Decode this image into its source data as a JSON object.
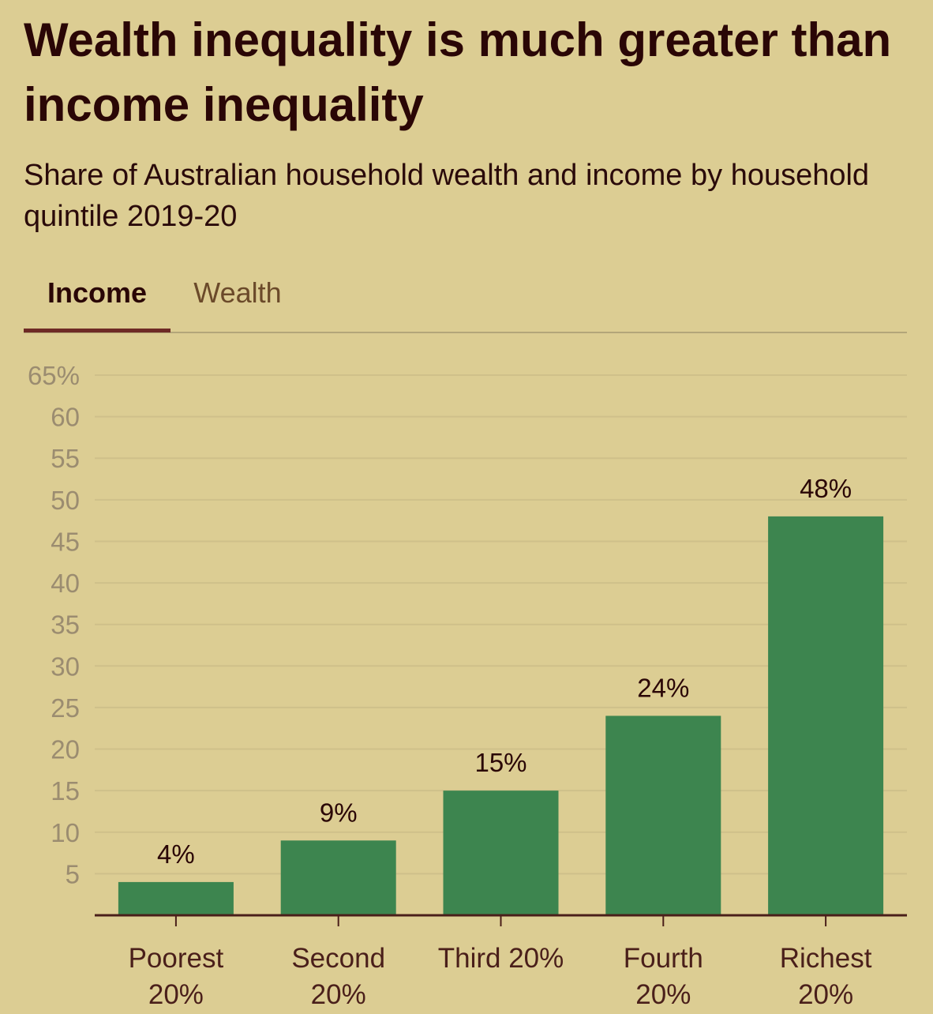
{
  "title": "Wealth inequality is much greater than income inequality",
  "subtitle": "Share of Australian household wealth and income by household quintile 2019-20",
  "tabs": [
    {
      "label": "Income",
      "active": true
    },
    {
      "label": "Wealth",
      "active": false
    }
  ],
  "colors": {
    "background": "#dccd93",
    "bar": "#3d854f",
    "title": "#2a0606",
    "tick_label": "#9b8c70",
    "grid": "#cfc08a",
    "axis": "#4a1f1a"
  },
  "chart_data": {
    "type": "bar",
    "categories": [
      [
        "Poorest",
        "20%"
      ],
      [
        "Second",
        "20%"
      ],
      [
        "Third 20%"
      ],
      [
        "Fourth",
        "20%"
      ],
      [
        "Richest",
        "20%"
      ]
    ],
    "values": [
      4,
      9,
      15,
      24,
      48
    ],
    "value_labels": [
      "4%",
      "9%",
      "15%",
      "24%",
      "48%"
    ],
    "xlabel": "",
    "ylabel": "",
    "ylim": [
      0,
      65
    ],
    "yticks": [
      5,
      10,
      15,
      20,
      25,
      30,
      35,
      40,
      45,
      50,
      55,
      60,
      65
    ],
    "ytick_labels": [
      "5",
      "10",
      "15",
      "20",
      "25",
      "30",
      "35",
      "40",
      "45",
      "50",
      "55",
      "60",
      "65%"
    ],
    "grid": true,
    "legend": "none"
  }
}
